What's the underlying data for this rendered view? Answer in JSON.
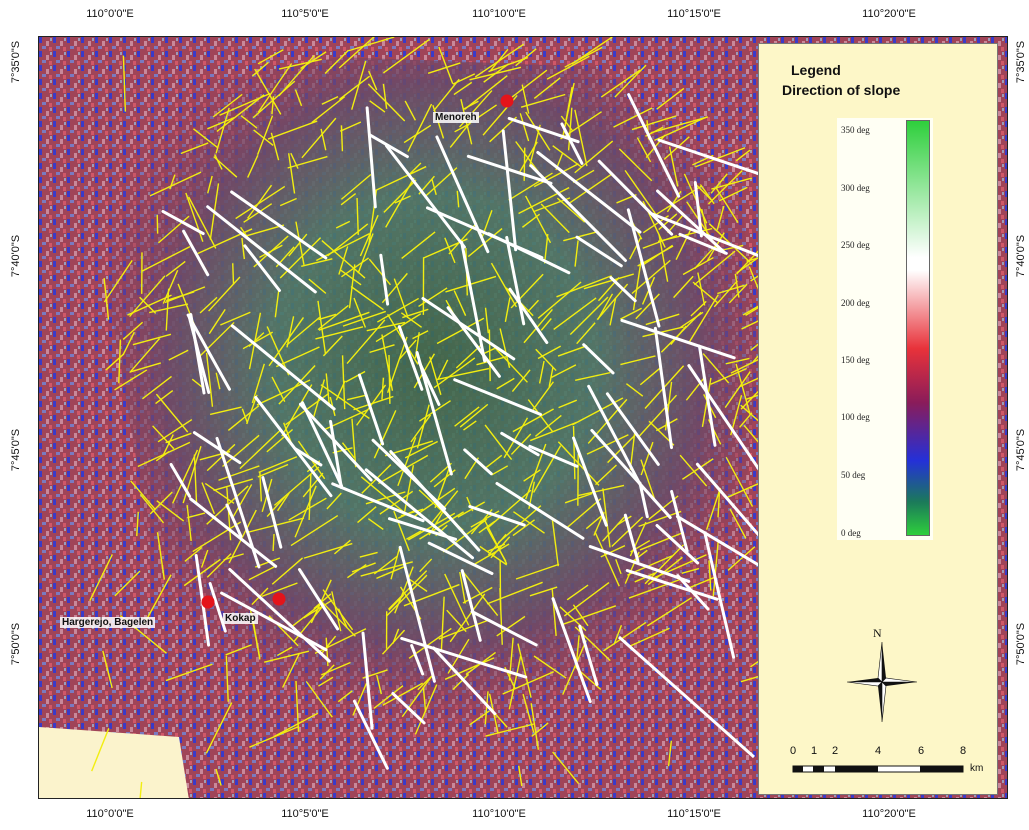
{
  "axes": {
    "top_labels": [
      "110°0'0\"E",
      "110°5'0\"E",
      "110°10'0\"E",
      "110°15'0\"E",
      "110°20'0\"E"
    ],
    "bottom_labels": [
      "110°0'0\"E",
      "110°5'0\"E",
      "110°10'0\"E",
      "110°15'0\"E",
      "110°20'0\"E"
    ],
    "left_labels": [
      "7°35'0\"S",
      "7°40'0\"S",
      "7°45'0\"S",
      "7°50'0\"S"
    ],
    "right_labels": [
      "7°35'0\"S",
      "7°40'0\"S",
      "7°45'0\"S",
      "7°50'0\"S"
    ]
  },
  "sites": [
    {
      "name": "Menoreh"
    },
    {
      "name": "Hargerejo, Bagelen"
    },
    {
      "name": "Kokap"
    }
  ],
  "legend": {
    "title": "Legend",
    "subtitle": "Direction of slope",
    "colorbar_labels": [
      "350 deg",
      "300 deg",
      "250 deg",
      "200 deg",
      "150 deg",
      "100 deg",
      "50 deg",
      "0 deg"
    ],
    "colors": {
      "low": "#2ecf3c",
      "mid_high": "#ffffff",
      "mid": "#e8323a",
      "mid_low": "#2430d8"
    }
  },
  "north_arrow": {
    "label": "N",
    "icon": "north-arrow-icon"
  },
  "scale_bar": {
    "ticks": [
      "0",
      "1",
      "2",
      "4",
      "6",
      "8"
    ],
    "unit": "km"
  },
  "map_colors": {
    "lineament_minor": "#f2ee10",
    "lineament_major": "#ffffff",
    "site_marker": "#e4141a"
  }
}
